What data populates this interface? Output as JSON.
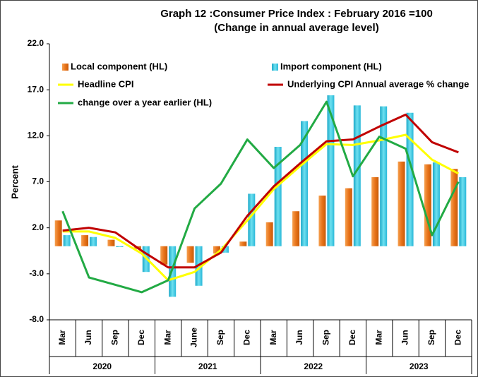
{
  "chart_data": {
    "type": "bar_line",
    "title": "Graph 12 :Consumer Price Index : February 2016 =100",
    "subtitle": "(Change in annual average level)",
    "y_label": "Percent",
    "categories": [
      "Mar",
      "Jun",
      "Sep",
      "Dec",
      "Mar",
      "June",
      "Sep",
      "Dec",
      "Mar",
      "Jun",
      "Sep",
      "Dec",
      "Mar",
      "Jun",
      "Sep",
      "Dec"
    ],
    "years": [
      "2020",
      "2021",
      "2022",
      "2023"
    ],
    "ylim": [
      -8,
      22
    ],
    "yticks": [
      {
        "value": -8,
        "label": "-8.0"
      },
      {
        "value": -3,
        "label": "-3.0"
      },
      {
        "value": 2,
        "label": "2.0"
      },
      {
        "value": 7,
        "label": "7.0"
      },
      {
        "value": 12,
        "label": "12.0"
      },
      {
        "value": 17,
        "label": "17.0"
      },
      {
        "value": 22,
        "label": "22.0"
      }
    ],
    "grid": false,
    "series": [
      {
        "name": "Local component (HL)",
        "kind": "bar",
        "color": "#e8731a",
        "values": [
          2.8,
          1.2,
          0.7,
          -0.3,
          -2.0,
          -1.8,
          -0.8,
          0.5,
          2.6,
          3.8,
          5.5,
          6.3,
          7.5,
          9.2,
          8.9,
          8.4
        ]
      },
      {
        "name": "Import component (HL)",
        "kind": "bar",
        "color": "#3cc6e0",
        "values": [
          1.2,
          1.0,
          -0.1,
          -2.8,
          -5.5,
          -4.3,
          -0.7,
          5.7,
          10.8,
          13.6,
          16.4,
          15.3,
          15.2,
          14.5,
          9.1,
          7.5
        ]
      },
      {
        "name": "Headline CPI",
        "kind": "line",
        "color": "#ffff00",
        "values": [
          1.6,
          1.6,
          0.9,
          -0.8,
          -3.7,
          -2.8,
          -0.4,
          2.8,
          6.2,
          8.7,
          11.1,
          11.0,
          11.5,
          12.1,
          9.4,
          7.9
        ]
      },
      {
        "name": "Underlying CPI Annual average % change",
        "kind": "line",
        "color": "#c00000",
        "values": [
          1.7,
          2.0,
          1.5,
          -0.5,
          -2.3,
          -2.3,
          -0.7,
          3.3,
          6.5,
          9.0,
          11.4,
          11.6,
          13.0,
          14.3,
          11.3,
          10.2
        ]
      },
      {
        "name": "change over a year earlier (HL)",
        "kind": "line",
        "color": "#22aa44",
        "values": [
          3.8,
          -3.4,
          -4.2,
          -5.0,
          -3.7,
          4.1,
          6.8,
          11.6,
          8.5,
          11.0,
          15.7,
          7.6,
          11.9,
          10.6,
          1.2,
          7.0
        ]
      }
    ]
  }
}
